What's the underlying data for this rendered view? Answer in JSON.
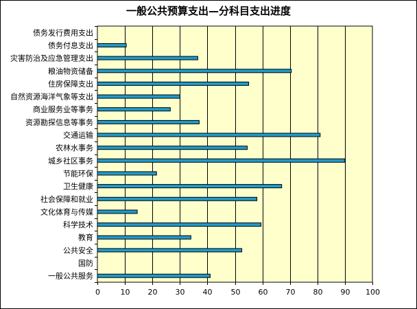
{
  "chart_data": {
    "type": "bar",
    "orientation": "horizontal",
    "title": "一般公共预算支出—分科目支出进度",
    "xlabel": "",
    "ylabel": "",
    "xlim": [
      0,
      100
    ],
    "x_ticks": [
      0,
      10,
      20,
      30,
      40,
      50,
      60,
      70,
      80,
      90,
      100
    ],
    "grid": true,
    "legend": "none",
    "categories": [
      "债务发行费用支出",
      "债务付息支出",
      "灾害防治及应急管理支出",
      "粮油物资储备",
      "住房保障支出",
      "自然资源海洋气象等支出",
      "商业服务业等事务",
      "资源勘探信息等事务",
      "交通运输",
      "农林水事务",
      "城乡社区事务",
      "节能环保",
      "卫生健康",
      "社会保障和就业",
      "文化体育与传媒",
      "科学技术",
      "教育",
      "公共安全",
      "国防",
      "一般公共服务"
    ],
    "values": [
      0,
      10.5,
      36.5,
      70.5,
      55,
      30,
      26.5,
      37,
      81,
      54.5,
      90,
      21.5,
      67,
      58,
      14.5,
      59.5,
      34,
      52.5,
      0,
      41
    ],
    "colors": {
      "plot_background": "#FFFFCC",
      "bar_fill": "#1F9BCB",
      "bar_stroke": "#000000",
      "grid": "#000000"
    }
  }
}
